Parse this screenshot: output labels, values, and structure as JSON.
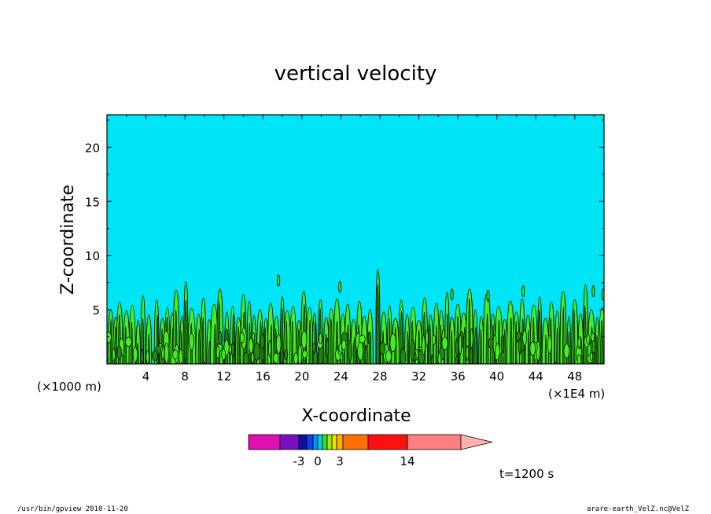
{
  "chart_data": {
    "type": "contour",
    "title": "vertical velocity",
    "xlabel": "X-coordinate",
    "ylabel": "Z-coordinate",
    "x_unit": "(×1000 m)",
    "x_unit_right": "(×1E4 m)",
    "xlim": [
      0,
      51
    ],
    "ylim": [
      0,
      23
    ],
    "x_ticks": [
      4,
      8,
      12,
      16,
      20,
      24,
      28,
      32,
      36,
      40,
      44,
      48
    ],
    "y_ticks": [
      5,
      10,
      15,
      20
    ],
    "background_color": "#00e5f5",
    "contour_colors": {
      "positive_fill": "#44ee22",
      "negative_fill": "#228811",
      "line": "#000000"
    },
    "plumes": [
      {
        "x": 0.4,
        "top": 5.0
      },
      {
        "x": 0.9,
        "top": 4.3
      },
      {
        "x": 1.3,
        "top": 5.7
      },
      {
        "x": 2.0,
        "top": 4.9
      },
      {
        "x": 2.6,
        "top": 5.4
      },
      {
        "x": 3.2,
        "top": 4.0
      },
      {
        "x": 3.7,
        "top": 6.3
      },
      {
        "x": 4.3,
        "top": 4.5
      },
      {
        "x": 5.1,
        "top": 5.9
      },
      {
        "x": 5.7,
        "top": 4.2
      },
      {
        "x": 6.2,
        "top": 5.2
      },
      {
        "x": 6.7,
        "top": 4.7
      },
      {
        "x": 7.1,
        "top": 6.8
      },
      {
        "x": 7.7,
        "top": 4.4
      },
      {
        "x": 8.1,
        "top": 7.6
      },
      {
        "x": 8.7,
        "top": 5.1
      },
      {
        "x": 9.4,
        "top": 4.6
      },
      {
        "x": 9.9,
        "top": 6.1
      },
      {
        "x": 10.5,
        "top": 4.1
      },
      {
        "x": 11.0,
        "top": 5.5
      },
      {
        "x": 11.6,
        "top": 6.9
      },
      {
        "x": 12.3,
        "top": 4.8
      },
      {
        "x": 12.9,
        "top": 5.3
      },
      {
        "x": 13.5,
        "top": 4.3
      },
      {
        "x": 14.0,
        "top": 6.4
      },
      {
        "x": 14.6,
        "top": 5.8
      },
      {
        "x": 15.1,
        "top": 4.5
      },
      {
        "x": 15.7,
        "top": 5.0
      },
      {
        "x": 16.3,
        "top": 4.2
      },
      {
        "x": 16.8,
        "top": 5.6
      },
      {
        "x": 17.4,
        "top": 4.4
      },
      {
        "x": 18.0,
        "top": 6.2
      },
      {
        "x": 18.5,
        "top": 4.9
      },
      {
        "x": 19.1,
        "top": 5.3
      },
      {
        "x": 19.7,
        "top": 4.0
      },
      {
        "x": 20.2,
        "top": 6.7
      },
      {
        "x": 20.8,
        "top": 5.2
      },
      {
        "x": 21.3,
        "top": 4.7
      },
      {
        "x": 21.9,
        "top": 5.9
      },
      {
        "x": 22.5,
        "top": 4.3
      },
      {
        "x": 23.0,
        "top": 5.1
      },
      {
        "x": 23.6,
        "top": 6.0
      },
      {
        "x": 24.2,
        "top": 4.6
      },
      {
        "x": 24.7,
        "top": 5.5
      },
      {
        "x": 25.3,
        "top": 4.1
      },
      {
        "x": 25.9,
        "top": 5.8
      },
      {
        "x": 26.4,
        "top": 4.4
      },
      {
        "x": 27.0,
        "top": 5.0
      },
      {
        "x": 27.8,
        "top": 8.7
      },
      {
        "x": 28.4,
        "top": 4.8
      },
      {
        "x": 29.0,
        "top": 5.4
      },
      {
        "x": 29.6,
        "top": 4.2
      },
      {
        "x": 30.2,
        "top": 5.9
      },
      {
        "x": 30.8,
        "top": 4.6
      },
      {
        "x": 31.4,
        "top": 5.2
      },
      {
        "x": 32.0,
        "top": 4.0
      },
      {
        "x": 32.6,
        "top": 6.1
      },
      {
        "x": 33.2,
        "top": 4.5
      },
      {
        "x": 33.8,
        "top": 5.6
      },
      {
        "x": 34.3,
        "top": 4.9
      },
      {
        "x": 34.9,
        "top": 6.6
      },
      {
        "x": 35.4,
        "top": 4.3
      },
      {
        "x": 36.0,
        "top": 5.5
      },
      {
        "x": 36.6,
        "top": 4.7
      },
      {
        "x": 37.2,
        "top": 6.9
      },
      {
        "x": 37.8,
        "top": 5.0
      },
      {
        "x": 38.4,
        "top": 4.4
      },
      {
        "x": 39.0,
        "top": 6.5
      },
      {
        "x": 39.6,
        "top": 4.6
      },
      {
        "x": 40.2,
        "top": 5.3
      },
      {
        "x": 40.8,
        "top": 4.1
      },
      {
        "x": 41.4,
        "top": 5.8
      },
      {
        "x": 42.0,
        "top": 4.8
      },
      {
        "x": 42.6,
        "top": 6.0
      },
      {
        "x": 43.2,
        "top": 4.5
      },
      {
        "x": 43.8,
        "top": 5.4
      },
      {
        "x": 44.4,
        "top": 6.2
      },
      {
        "x": 45.0,
        "top": 4.2
      },
      {
        "x": 45.6,
        "top": 5.7
      },
      {
        "x": 46.2,
        "top": 4.9
      },
      {
        "x": 46.8,
        "top": 6.7
      },
      {
        "x": 47.4,
        "top": 4.4
      },
      {
        "x": 48.0,
        "top": 5.9
      },
      {
        "x": 48.6,
        "top": 4.6
      },
      {
        "x": 49.1,
        "top": 7.3
      },
      {
        "x": 49.7,
        "top": 5.0
      },
      {
        "x": 50.3,
        "top": 4.3
      },
      {
        "x": 50.8,
        "top": 5.2
      }
    ],
    "isolated_blobs": [
      {
        "x": 17.6,
        "z": 7.7
      },
      {
        "x": 23.9,
        "z": 7.1
      },
      {
        "x": 35.4,
        "z": 6.4
      },
      {
        "x": 39.1,
        "z": 6.3
      },
      {
        "x": 42.7,
        "z": 6.7
      },
      {
        "x": 49.9,
        "z": 6.7
      },
      {
        "x": 50.9,
        "z": 6.4
      }
    ],
    "colorbar": {
      "colors": [
        "#e010b0",
        "#7a10c0",
        "#1010a0",
        "#1040f0",
        "#0090ff",
        "#00d0e0",
        "#30e030",
        "#a0f000",
        "#f0e000",
        "#ffb000",
        "#ff7000",
        "#ff1010",
        "#ff8080",
        "#ffb0b0"
      ],
      "labels": [
        "-3",
        "0",
        "3",
        "14"
      ]
    },
    "time_label": "t=1200 s"
  },
  "footer": {
    "left": "/usr/bin/gpview  2010-11-20",
    "right": "arare-earth_VelZ.nc@VelZ"
  }
}
